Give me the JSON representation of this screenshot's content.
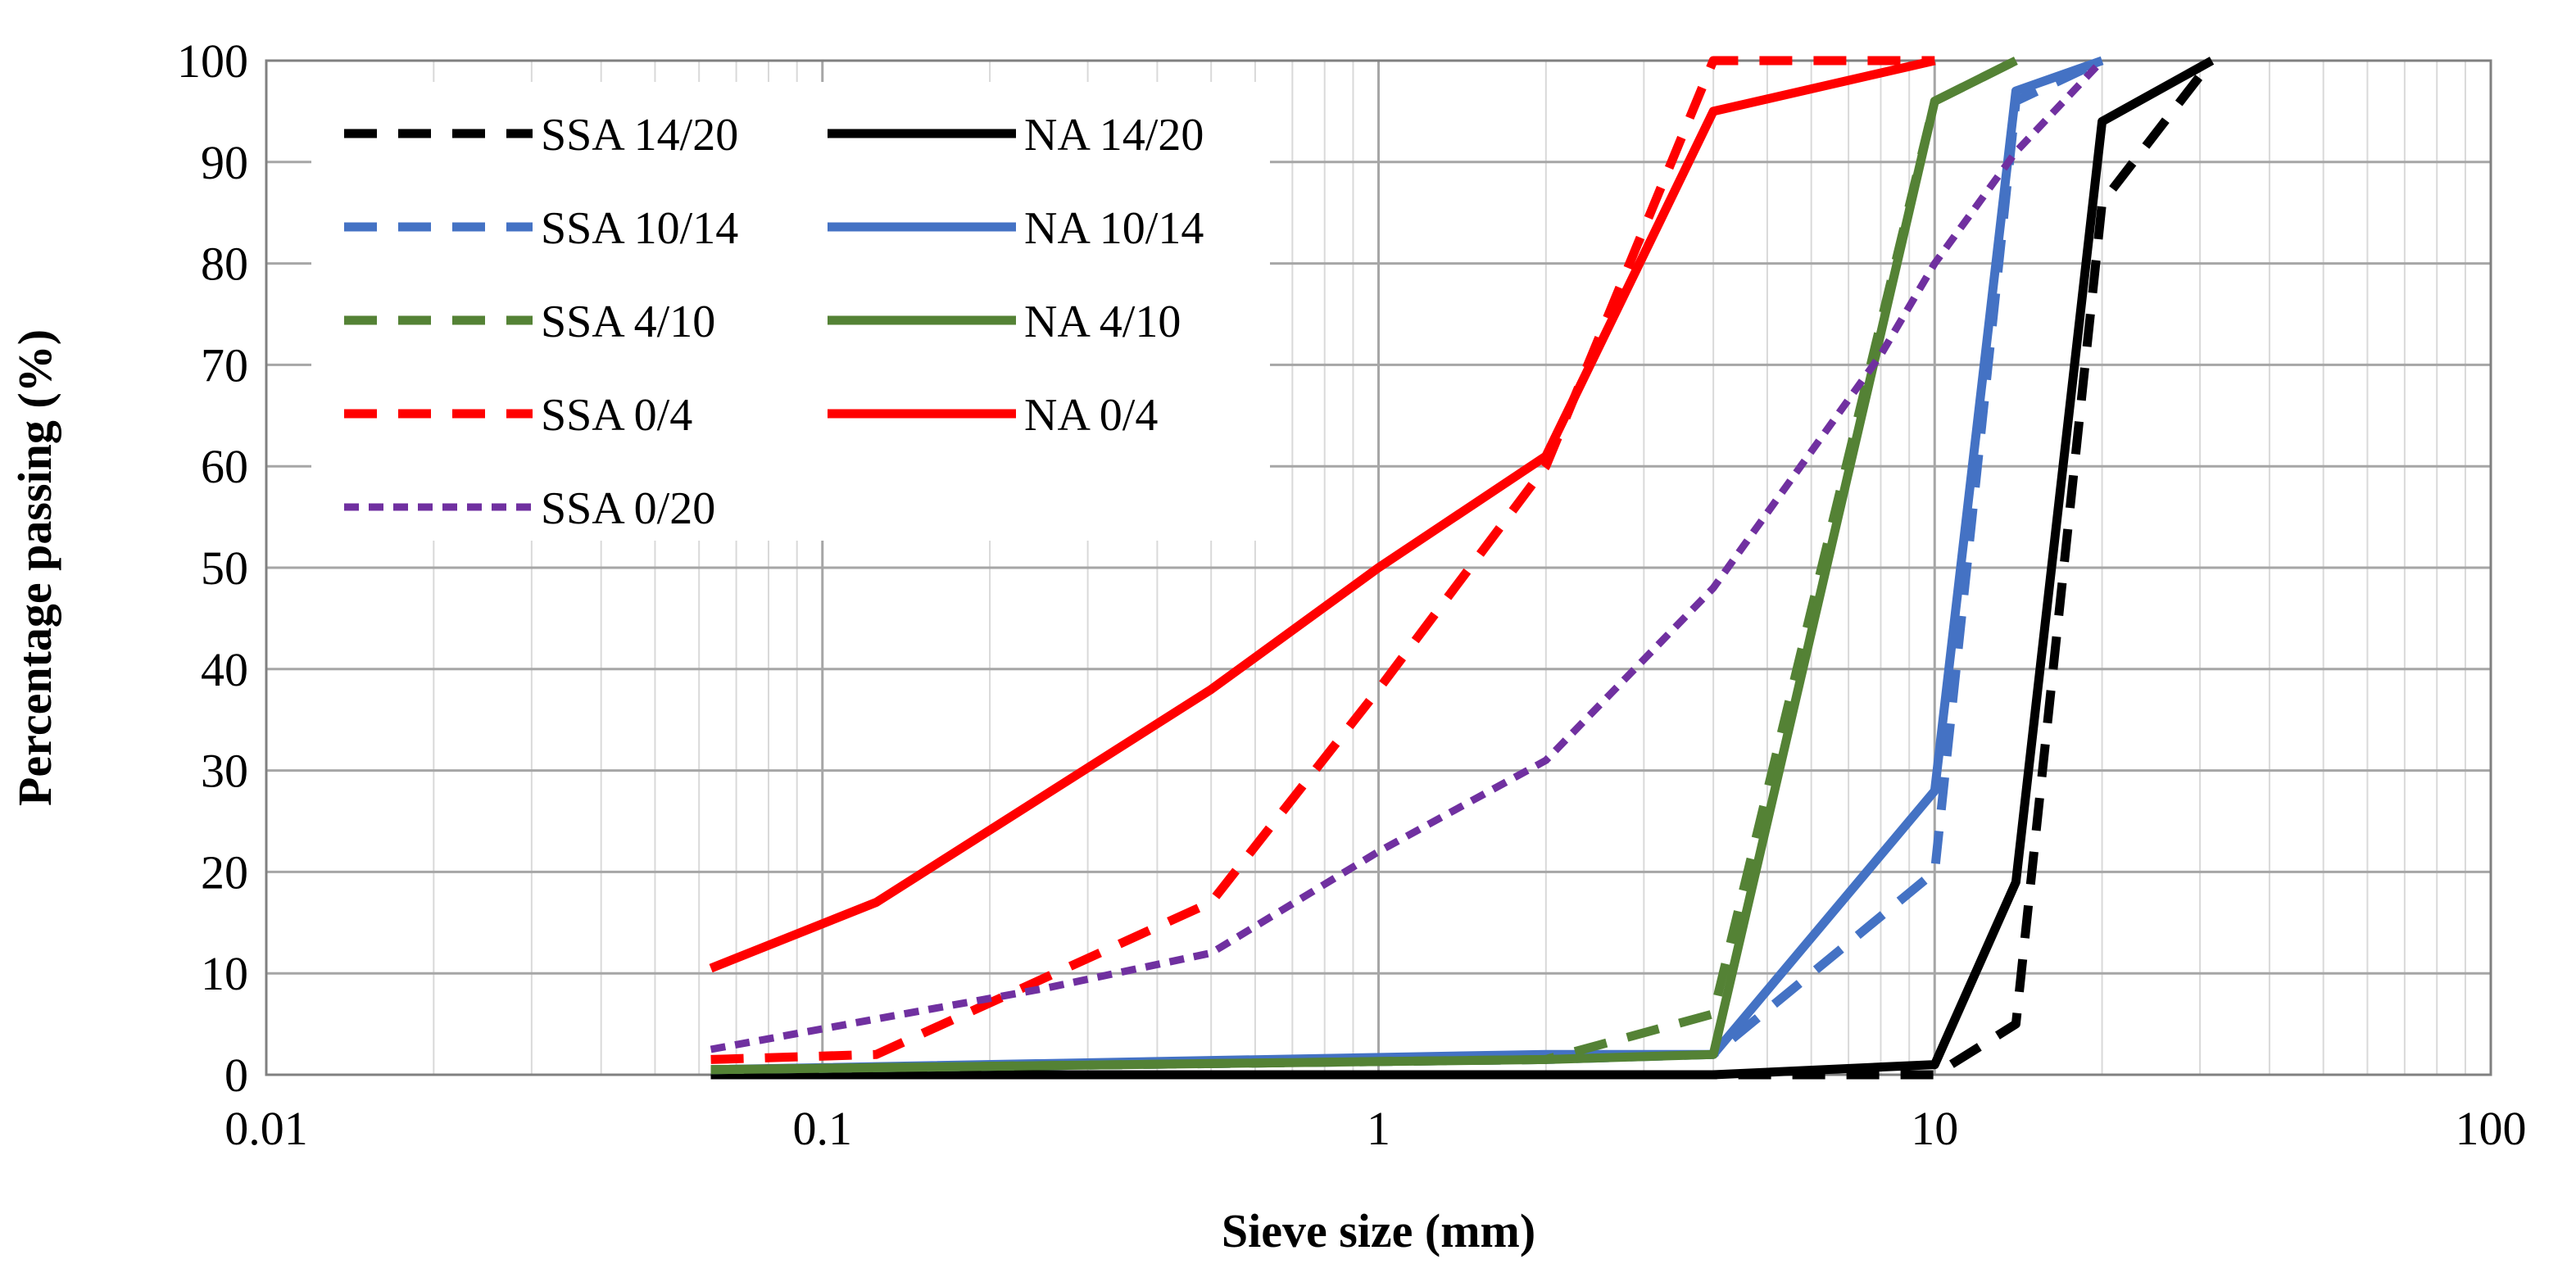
{
  "chart_data": {
    "type": "line",
    "title": "",
    "xlabel": "Sieve size (mm)",
    "ylabel": "Percentage passing (%)",
    "x_scale": "log",
    "xlim": [
      0.01,
      100
    ],
    "ylim": [
      0,
      100
    ],
    "x_tick_labels": [
      "0.01",
      "0.1",
      "1",
      "10",
      "100"
    ],
    "y_tick_labels": [
      "0",
      "10",
      "20",
      "30",
      "40",
      "50",
      "60",
      "70",
      "80",
      "90",
      "100"
    ],
    "grid": true,
    "legend_position": "top-left",
    "series": [
      {
        "name": "SSA 14/20",
        "color": "#000000",
        "style": "dashed",
        "x": [
          0.063,
          10,
          14,
          20,
          31.5
        ],
        "y": [
          0,
          0,
          5,
          86,
          100
        ]
      },
      {
        "name": "NA 14/20",
        "color": "#000000",
        "style": "solid",
        "x": [
          0.063,
          4,
          10,
          14,
          20,
          31.5
        ],
        "y": [
          0,
          0,
          1,
          19,
          94,
          100
        ]
      },
      {
        "name": "SSA 10/14",
        "color": "#4472C4",
        "style": "dashed",
        "x": [
          0.063,
          2,
          4,
          10,
          14,
          20
        ],
        "y": [
          0.5,
          1.5,
          2,
          20,
          96,
          100
        ]
      },
      {
        "name": "NA 10/14",
        "color": "#4472C4",
        "style": "solid",
        "x": [
          0.063,
          2,
          4,
          10,
          14,
          20
        ],
        "y": [
          0.5,
          2,
          2,
          28,
          97,
          100
        ]
      },
      {
        "name": "SSA 4/10",
        "color": "#548235",
        "style": "dashed",
        "x": [
          0.063,
          2,
          4,
          10,
          14
        ],
        "y": [
          0.5,
          1.5,
          6,
          96,
          100
        ]
      },
      {
        "name": "NA 4/10",
        "color": "#548235",
        "style": "solid",
        "x": [
          0.063,
          2,
          4,
          10,
          14
        ],
        "y": [
          0.5,
          1.5,
          2,
          96,
          100
        ]
      },
      {
        "name": "SSA 0/4",
        "color": "#FF0000",
        "style": "dashed",
        "x": [
          0.063,
          0.125,
          0.5,
          1,
          2,
          4,
          10
        ],
        "y": [
          1.5,
          2,
          17,
          38,
          60,
          100,
          100
        ]
      },
      {
        "name": "NA 0/4",
        "color": "#FF0000",
        "style": "solid",
        "x": [
          0.063,
          0.125,
          0.5,
          1,
          2,
          4,
          10
        ],
        "y": [
          10.5,
          17,
          38,
          50,
          61,
          95,
          100
        ]
      },
      {
        "name": "SSA 0/20",
        "color": "#7030A0",
        "style": "dotted",
        "x": [
          0.063,
          0.125,
          0.25,
          0.5,
          1,
          2,
          4,
          8,
          10,
          14,
          20
        ],
        "y": [
          2.5,
          5.5,
          8.5,
          12,
          22,
          31,
          48,
          71,
          80,
          91,
          100
        ]
      }
    ]
  }
}
